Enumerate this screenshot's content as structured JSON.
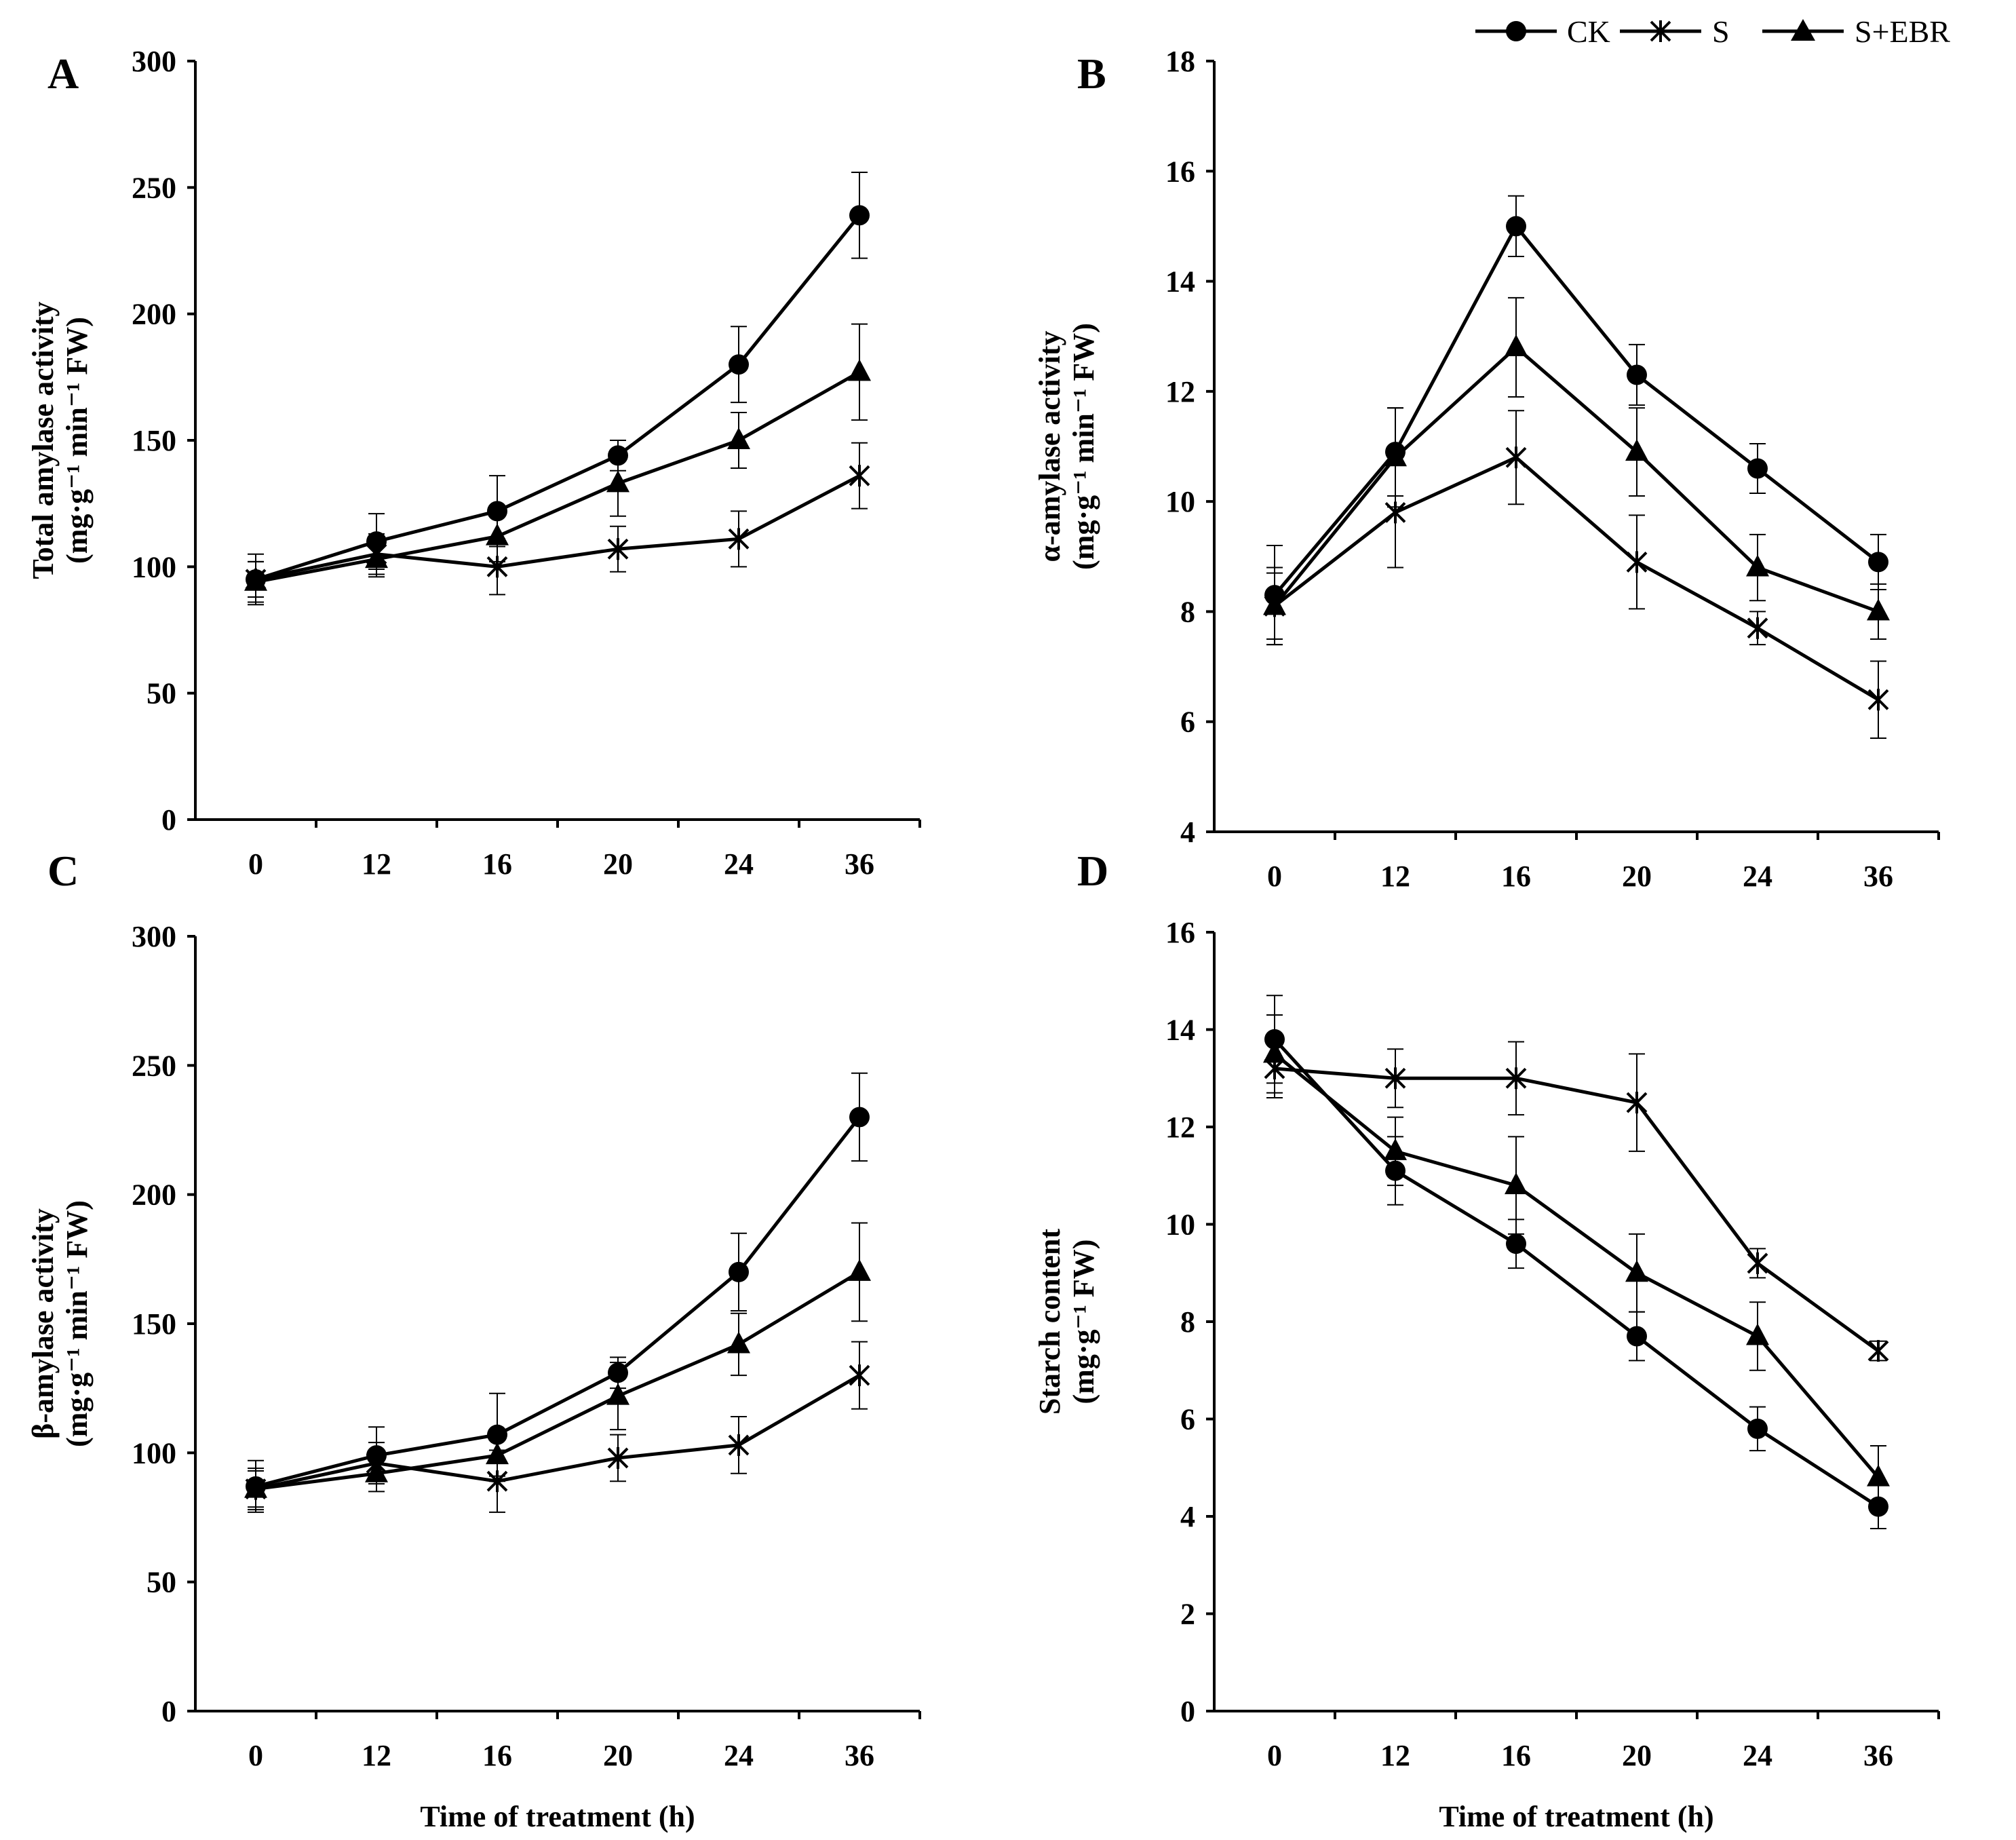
{
  "legend": {
    "items": [
      {
        "name": "CK",
        "marker": "circle-marker"
      },
      {
        "name": "S",
        "marker": "asterisk-marker"
      },
      {
        "name": "S+EBR",
        "marker": "triangle-marker"
      }
    ]
  },
  "chart_data": [
    {
      "type": "line",
      "panel_label": "A",
      "title": "",
      "xlabel": "",
      "ylabel_lines": [
        "Total  amylase activity",
        "(mg·g⁻¹ min⁻¹ FW)"
      ],
      "categories": [
        "0",
        "12",
        "16",
        "20",
        "24",
        "36"
      ],
      "ylim": [
        0,
        300
      ],
      "yticks": [
        "0",
        "50",
        "100",
        "150",
        "200",
        "250",
        "300"
      ],
      "grid": false,
      "series": [
        {
          "name": "CK",
          "values": [
            95,
            110,
            122,
            144,
            180,
            239
          ],
          "errors": [
            10,
            11,
            14,
            6,
            15,
            17
          ]
        },
        {
          "name": "S",
          "values": [
            95,
            105,
            100,
            107,
            111,
            136
          ],
          "errors": [
            7,
            8,
            11,
            9,
            11,
            13
          ]
        },
        {
          "name": "S+EBR",
          "values": [
            94,
            103,
            112,
            133,
            150,
            177
          ],
          "errors": [
            8,
            7,
            10,
            13,
            11,
            19
          ]
        }
      ]
    },
    {
      "type": "line",
      "panel_label": "B",
      "title": "",
      "xlabel": "",
      "ylabel_lines": [
        "α-amylase activity",
        "(mg·g⁻¹ min⁻¹ FW)"
      ],
      "categories": [
        "0",
        "12",
        "16",
        "20",
        "24",
        "36"
      ],
      "ylim": [
        4,
        18
      ],
      "yticks": [
        "4",
        "6",
        "8",
        "10",
        "12",
        "14",
        "16",
        "18"
      ],
      "grid": false,
      "series": [
        {
          "name": "CK",
          "values": [
            8.3,
            10.9,
            15.0,
            12.3,
            10.6,
            8.9
          ],
          "errors": [
            0.9,
            0.8,
            0.55,
            0.55,
            0.45,
            0.5
          ]
        },
        {
          "name": "S",
          "values": [
            8.1,
            9.8,
            10.8,
            8.9,
            7.7,
            6.4
          ],
          "errors": [
            0.7,
            1.0,
            0.85,
            0.85,
            0.3,
            0.7
          ]
        },
        {
          "name": "S+EBR",
          "values": [
            8.1,
            10.8,
            12.8,
            10.9,
            8.8,
            8.0
          ],
          "errors": [
            0.6,
            0.9,
            0.9,
            0.8,
            0.6,
            0.5
          ]
        }
      ]
    },
    {
      "type": "line",
      "panel_label": "C",
      "title": "",
      "xlabel": "Time of treatment (h)",
      "ylabel_lines": [
        "β-amylase activity",
        "(mg·g⁻¹ min⁻¹ FW)"
      ],
      "categories": [
        "0",
        "12",
        "16",
        "20",
        "24",
        "36"
      ],
      "ylim": [
        0,
        300
      ],
      "yticks": [
        "0",
        "50",
        "100",
        "150",
        "200",
        "250",
        "300"
      ],
      "grid": false,
      "series": [
        {
          "name": "CK",
          "values": [
            87,
            99,
            107,
            131,
            170,
            230
          ],
          "errors": [
            10,
            11,
            16,
            6,
            15,
            17
          ]
        },
        {
          "name": "S",
          "values": [
            86,
            96,
            89,
            98,
            103,
            130
          ],
          "errors": [
            8,
            8,
            12,
            9,
            11,
            13
          ]
        },
        {
          "name": "S+EBR",
          "values": [
            86,
            92,
            99,
            122,
            142,
            170
          ],
          "errors": [
            7,
            7,
            10,
            13,
            12,
            19
          ]
        }
      ]
    },
    {
      "type": "line",
      "panel_label": "D",
      "title": "",
      "xlabel": "Time of treatment (h)",
      "ylabel_lines": [
        "Starch content",
        "(mg·g⁻¹ FW)"
      ],
      "categories": [
        "0",
        "12",
        "16",
        "20",
        "24",
        "36"
      ],
      "ylim": [
        0,
        16
      ],
      "yticks": [
        "0",
        "2",
        "4",
        "6",
        "8",
        "10",
        "12",
        "14",
        "16"
      ],
      "grid": false,
      "series": [
        {
          "name": "CK",
          "values": [
            13.8,
            11.1,
            9.6,
            7.7,
            5.8,
            4.2
          ],
          "errors": [
            0.9,
            0.7,
            0.5,
            0.5,
            0.45,
            0.45
          ]
        },
        {
          "name": "S",
          "values": [
            13.2,
            13.0,
            13.0,
            12.5,
            9.2,
            7.4
          ],
          "errors": [
            0.6,
            0.6,
            0.75,
            1.0,
            0.3,
            0.2
          ]
        },
        {
          "name": "S+EBR",
          "values": [
            13.5,
            11.5,
            10.8,
            9.0,
            7.7,
            4.8
          ],
          "errors": [
            0.8,
            0.7,
            1.0,
            0.8,
            0.7,
            0.65
          ]
        }
      ]
    }
  ]
}
